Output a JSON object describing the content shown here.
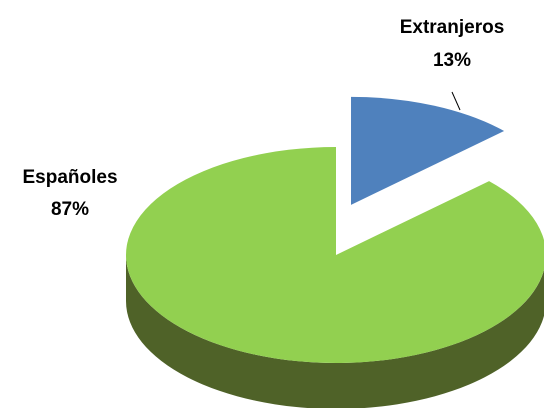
{
  "chart_data": {
    "type": "pie",
    "style": "3d-exploded",
    "title": "",
    "slices": [
      {
        "name": "Extranjeros",
        "percent_label": "13%",
        "value": 13,
        "color": "#4f81bd",
        "side_color": "#243f60",
        "exploded": true
      },
      {
        "name": "Españoles",
        "percent_label": "87%",
        "value": 87,
        "color": "#92d050",
        "side_color": "#4f6228",
        "exploded": false
      }
    ]
  }
}
